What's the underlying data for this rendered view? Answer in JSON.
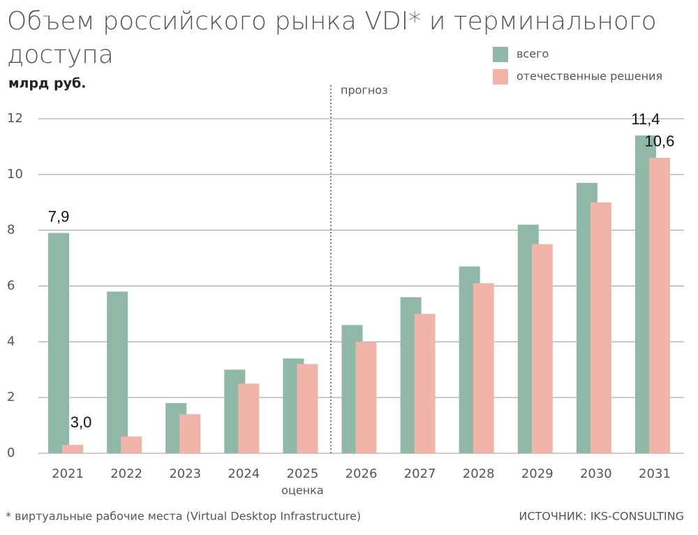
{
  "chart_data": {
    "type": "bar",
    "title": [
      "Объем российского рынка VDI* и терминального",
      "доступа"
    ],
    "y_label": "млрд руб.",
    "forecast_label": "прогноз",
    "estimate_label": "оценка",
    "annotation": "3,0",
    "footnote": "* виртуальные рабочие места (Virtual Desktop Infrastructure)",
    "source": "ИСТОЧНИК: IKS-CONSULTING",
    "categories": [
      "2021",
      "2022",
      "2023",
      "2024",
      "2025",
      "2026",
      "2027",
      "2028",
      "2029",
      "2030",
      "2031"
    ],
    "series": [
      {
        "name": "всего",
        "color": "#8fb8a6",
        "values": [
          7.9,
          5.8,
          1.8,
          3.0,
          3.4,
          4.6,
          5.6,
          6.7,
          8.2,
          9.7,
          11.4
        ],
        "value_labels": [
          "7,9",
          null,
          null,
          null,
          null,
          null,
          null,
          null,
          null,
          null,
          "11,4"
        ]
      },
      {
        "name": "отечественные решения",
        "color": "#f0b4a8",
        "values": [
          0.3,
          0.6,
          1.4,
          2.5,
          3.2,
          4.0,
          5.0,
          6.1,
          7.5,
          9.0,
          10.6
        ],
        "value_labels": [
          null,
          null,
          null,
          null,
          null,
          null,
          null,
          null,
          null,
          null,
          "10,6"
        ]
      }
    ],
    "ylim": [
      0,
      12
    ],
    "yticks": [
      0,
      2,
      4,
      6,
      8,
      10,
      12
    ],
    "grid": true
  }
}
